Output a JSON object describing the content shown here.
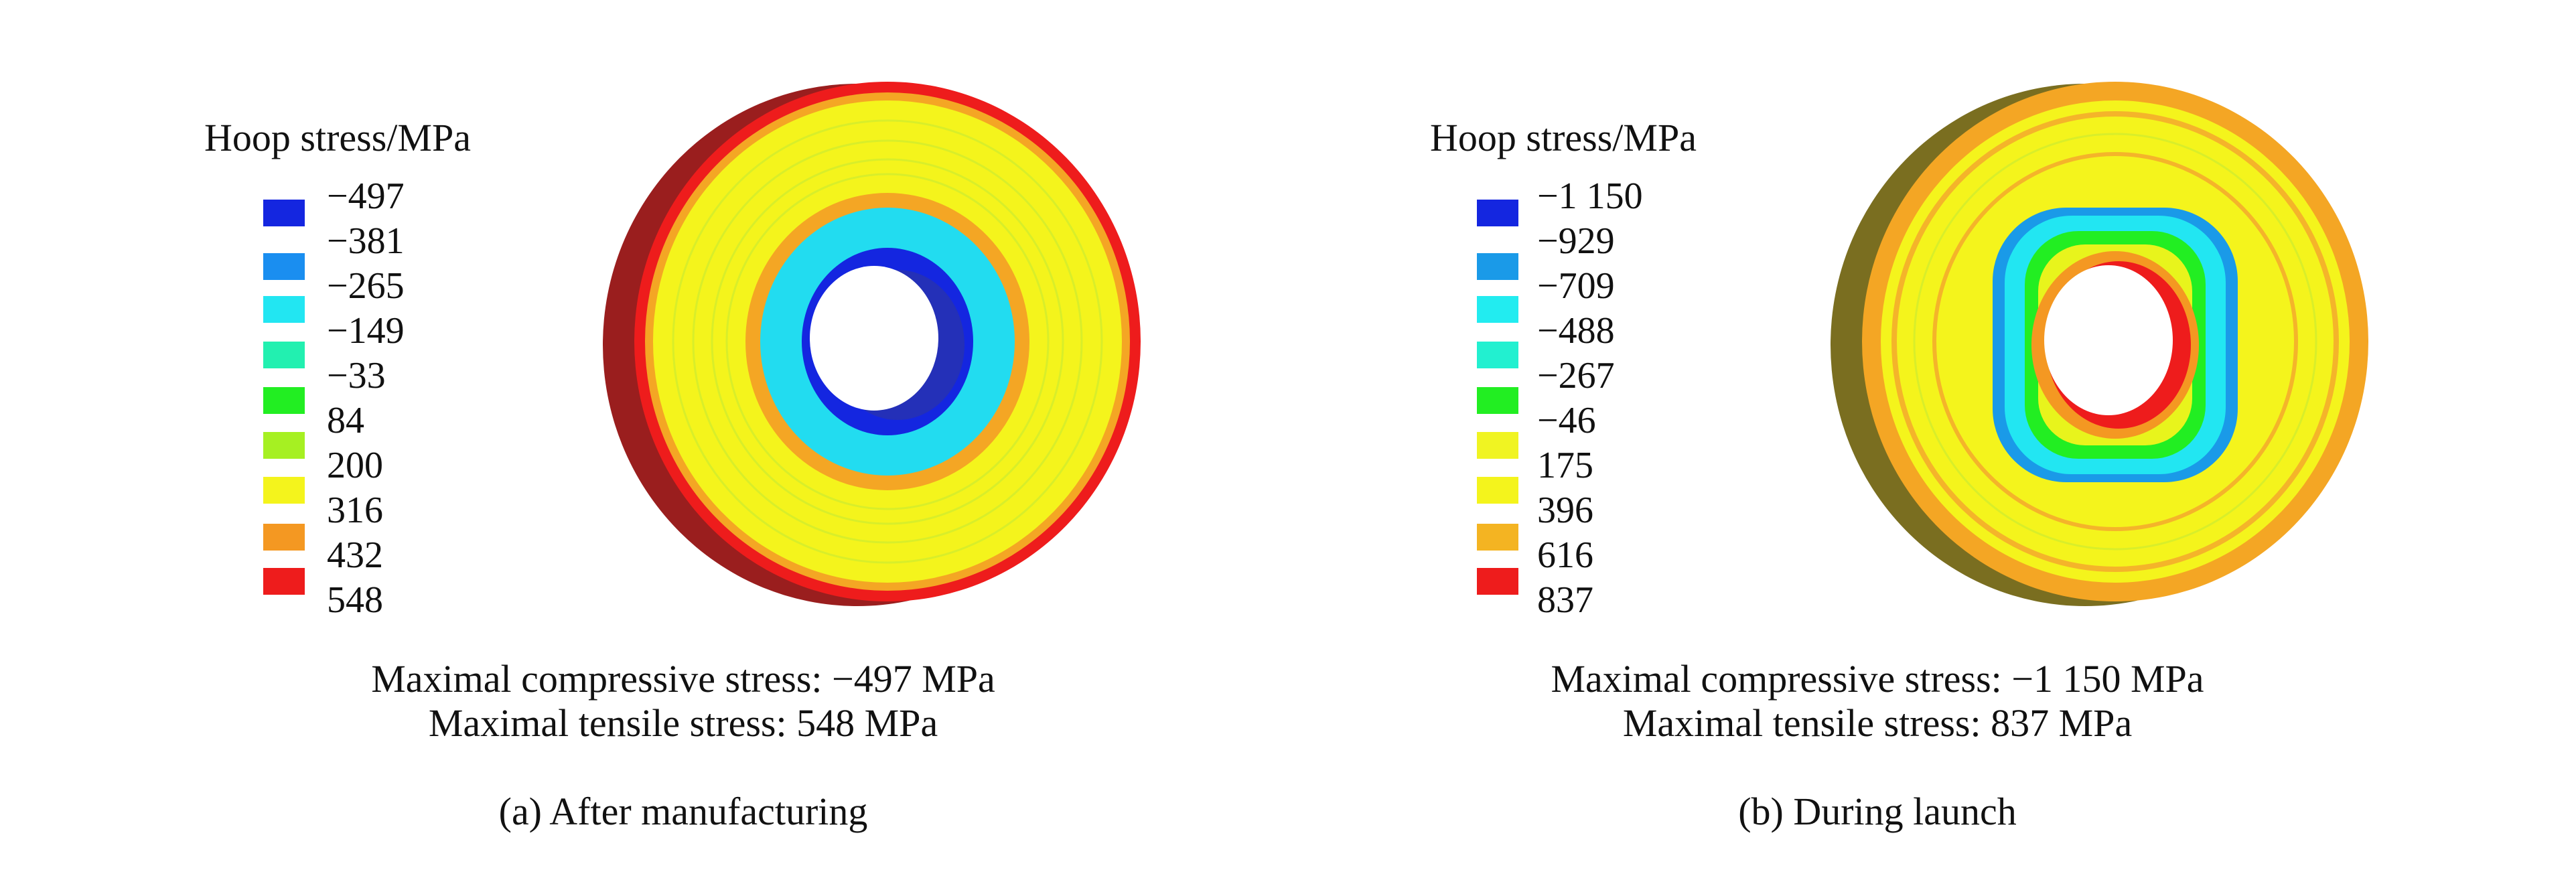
{
  "panels": [
    {
      "legend_title": "Hoop stress/MPa",
      "ticks": [
        "−497",
        "−381",
        "−265",
        "−149",
        "−33",
        "84",
        "200",
        "316",
        "432",
        "548"
      ],
      "swatch_colors": [
        "#1426e0",
        "#1a8ef0",
        "#22e6f2",
        "#22f0b0",
        "#22ee22",
        "#a6f022",
        "#f4f41c",
        "#f4f41c",
        "#f49822",
        "#ee1c1c"
      ],
      "note_compressive": "Maximal compressive stress: −497 MPa",
      "note_tensile": "Maximal tensile stress: 548 MPa",
      "caption": "(a) After manufacturing"
    },
    {
      "legend_title": "Hoop stress/MPa",
      "ticks": [
        "−1 150",
        "−929",
        "−709",
        "−488",
        "−267",
        "−46",
        "175",
        "396",
        "616",
        "837"
      ],
      "swatch_colors": [
        "#1426e0",
        "#1a9ae8",
        "#22ecf0",
        "#22f0d0",
        "#22ee22",
        "#f0f422",
        "#f4f41c",
        "#f4b422",
        "#ee1c1c"
      ],
      "note_compressive": "Maximal compressive stress: −1 150 MPa",
      "note_tensile": "Maximal tensile stress: 837 MPa",
      "caption": "(b) During launch"
    }
  ]
}
